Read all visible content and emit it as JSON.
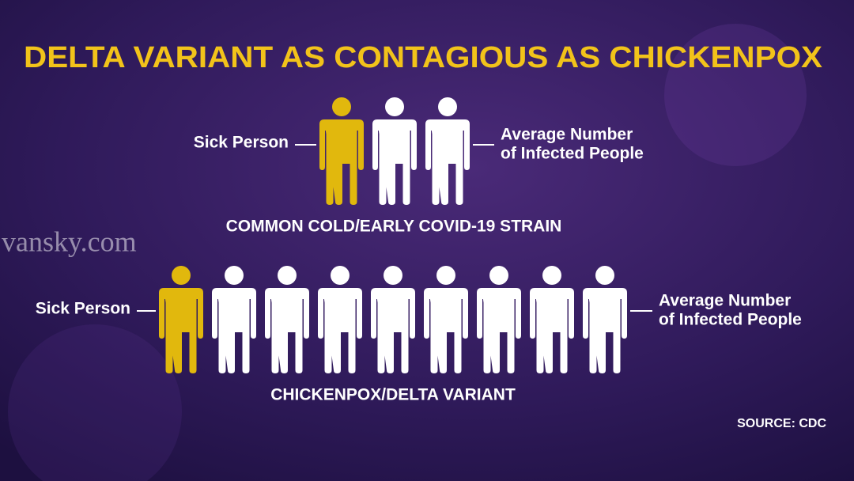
{
  "title": "DELTA VARIANT AS CONTAGIOUS AS CHICKENPOX",
  "rows": [
    {
      "sick_label": "Sick Person",
      "infected_label": [
        "Average Number",
        "of Infected People"
      ],
      "caption": "COMMON COLD/EARLY COVID-19 STRAIN",
      "sick": 1,
      "infected": 2
    },
    {
      "sick_label": "Sick Person",
      "infected_label": [
        "Average Number",
        "of Infected People"
      ],
      "caption": "CHICKENPOX/DELTA VARIANT",
      "sick": 1,
      "infected": 8
    }
  ],
  "source": "SOURCE: CDC",
  "watermark": "vansky.com"
}
